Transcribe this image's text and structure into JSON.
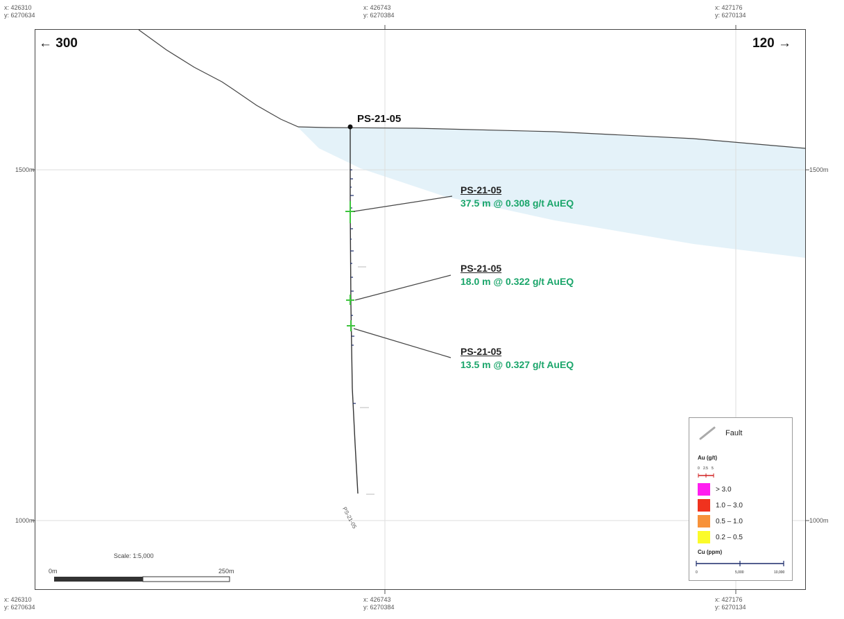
{
  "top_coords": [
    {
      "x": "x: 426310",
      "y": "y: 6270634"
    },
    {
      "x": "x: 426743",
      "y": "y: 6270384"
    },
    {
      "x": "x: 427176",
      "y": "y: 6270134"
    }
  ],
  "bottom_coords": [
    {
      "x": "x: 426310",
      "y": "y: 6270634"
    },
    {
      "x": "x: 426743",
      "y": "y: 6270384"
    },
    {
      "x": "x: 427176",
      "y": "y: 6270134"
    }
  ],
  "elevations": {
    "upper_left": "1500m",
    "upper_right": "1500m",
    "lower_left": "1000m",
    "lower_right": "1000m"
  },
  "direction": {
    "left": "← 300",
    "right": "120 →"
  },
  "collar_label": "PS-21-05",
  "hole_trace_label": "PS-21-05",
  "callouts": [
    {
      "hole": "PS-21-05",
      "grade": "37.5 m @ 0.308 g/t AuEQ"
    },
    {
      "hole": "PS-21-05",
      "grade": "18.0 m @ 0.322 g/t AuEQ"
    },
    {
      "hole": "PS-21-05",
      "grade": "13.5 m @ 0.327 g/t AuEQ"
    }
  ],
  "scale": {
    "label": "Scale: 1:5,000",
    "start": "0m",
    "end": "250m"
  },
  "legend": {
    "fault_label": "Fault",
    "au_title": "Au (g/t)",
    "au_ticks": [
      "0",
      "2.5",
      "5"
    ],
    "au_classes": [
      {
        "label": "> 3.0",
        "color": "#ff1ef0"
      },
      {
        "label": "1.0 – 3.0",
        "color": "#f0321e"
      },
      {
        "label": "0.5 – 1.0",
        "color": "#f7923a"
      },
      {
        "label": "0.2 – 0.5",
        "color": "#fbfb2a"
      }
    ],
    "cu_title": "Cu (ppm)",
    "cu_ticks": [
      "0",
      "5,000",
      "10,000"
    ]
  },
  "colors": {
    "oxide_zone": "#dff0f8",
    "grade_text": "#1aa56a",
    "hole_trace": "#333333",
    "intercept": "#3cc43c"
  }
}
